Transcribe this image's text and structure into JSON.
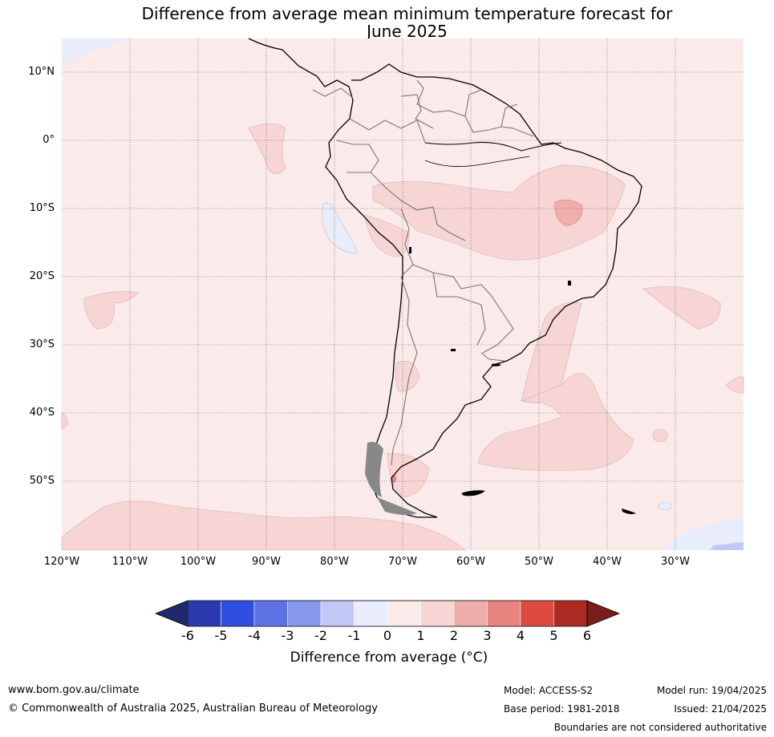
{
  "title": {
    "line1": "Difference from average mean minimum temperature forecast for",
    "line2": "June 2025"
  },
  "latitude_labels": [
    "10°N",
    "0°",
    "10°S",
    "20°S",
    "30°S",
    "40°S",
    "50°S"
  ],
  "longitude_labels": [
    "120°W",
    "110°W",
    "100°W",
    "90°W",
    "80°W",
    "70°W",
    "60°W",
    "50°W",
    "40°W",
    "30°W"
  ],
  "colorbar": {
    "ticks": [
      "-6",
      "-5",
      "-4",
      "-3",
      "-2",
      "-1",
      "0",
      "1",
      "2",
      "3",
      "4",
      "5",
      "6"
    ],
    "colors": [
      "#1f2a6e",
      "#2a3bb0",
      "#2f4fe0",
      "#5c72e6",
      "#8898ec",
      "#c0c8f5",
      "#e8ecfb",
      "#fbeaea",
      "#f6d5d4",
      "#edaeac",
      "#e8857f",
      "#dc4a40",
      "#ad2a23",
      "#7a1d1a"
    ],
    "label": "Difference from average (°C)"
  },
  "footer": {
    "website": "www.bom.gov.au/climate",
    "copyright": "© Commonwealth of Australia 2025, Australian Bureau of Meteorology",
    "model": "Model: ACCESS-S2",
    "base_period": "Base period: 1981-2018",
    "model_run": "Model run: 19/04/2025",
    "issued": "Issued: 21/04/2025",
    "disclaimer": "Boundaries are not considered authoritative"
  }
}
